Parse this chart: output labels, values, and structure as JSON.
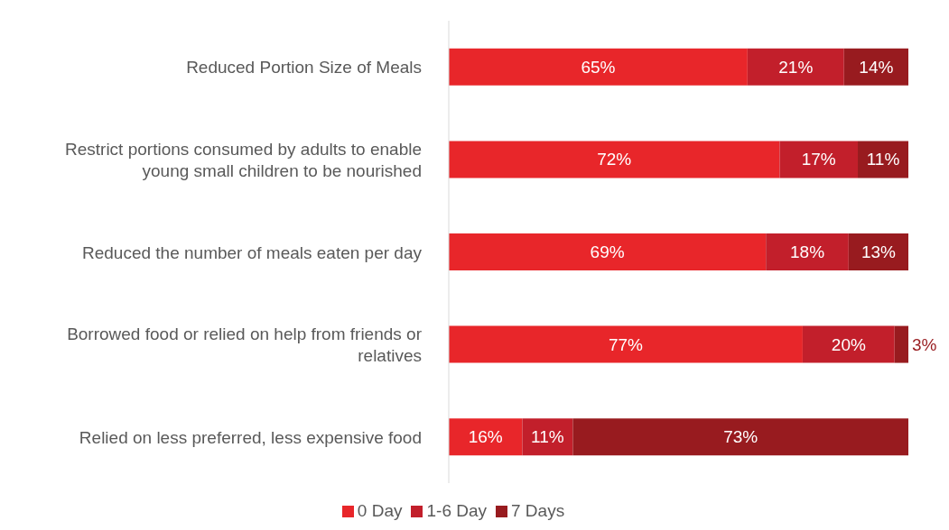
{
  "chart_data": {
    "type": "bar",
    "orientation": "horizontal",
    "stacked": true,
    "tick_labels": "y",
    "legend": "bottom",
    "grid": false,
    "categories": [
      "Reduced Portion Size of Meals",
      "Restrict portions consumed by adults to enable young small children to be nourished",
      "Reduced the number of meals eaten per day",
      "Borrowed food or relied on help from friends or relatives",
      "Relied on less preferred, less expensive food"
    ],
    "series": [
      {
        "name": "0 Day",
        "color": "#e8262a",
        "values": [
          65,
          72,
          69,
          77,
          16
        ],
        "value_labels": [
          "65%",
          "72%",
          "69%",
          "77%",
          "16%"
        ]
      },
      {
        "name": "1-6 Day",
        "color": "#c21f2b",
        "values": [
          21,
          17,
          18,
          20,
          11
        ],
        "value_labels": [
          "21%",
          "17%",
          "18%",
          "20%",
          "11%"
        ]
      },
      {
        "name": "7 Days",
        "color": "#981b1f",
        "values": [
          14,
          11,
          13,
          3,
          73
        ],
        "value_labels": [
          "14%",
          "11%",
          "13%",
          "3%",
          "73%"
        ]
      }
    ]
  }
}
